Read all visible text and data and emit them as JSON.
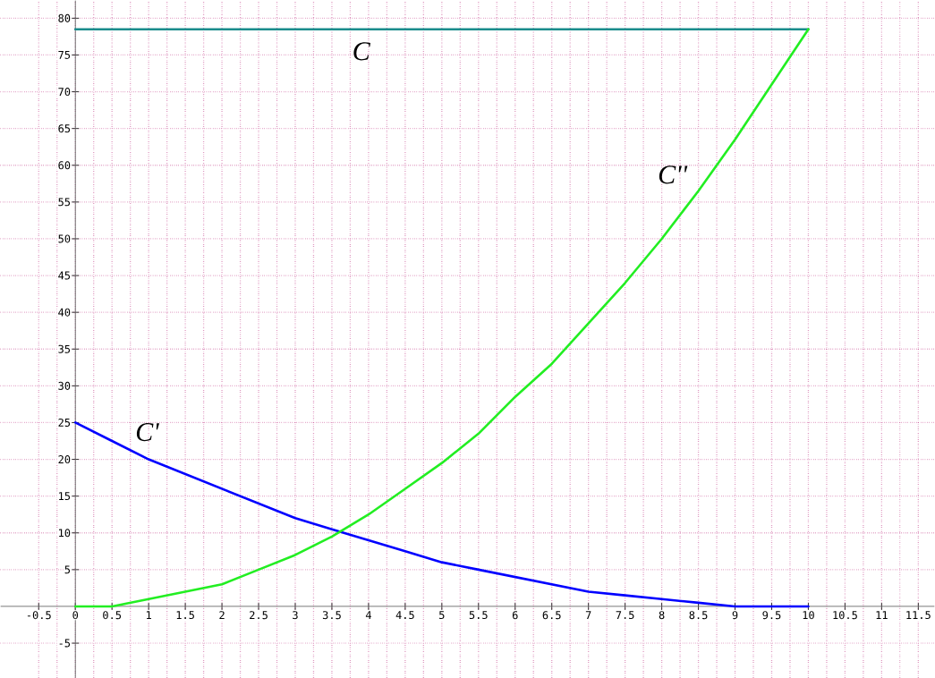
{
  "chart_data": {
    "type": "line",
    "xlim": [
      -1.02,
      11.72
    ],
    "ylim": [
      -9.7,
      82.4
    ],
    "xticks": [
      -0.5,
      0,
      0.5,
      1,
      1.5,
      2,
      2.5,
      3,
      3.5,
      4,
      4.5,
      5,
      5.5,
      6,
      6.5,
      7,
      7.5,
      8,
      8.5,
      9,
      9.5,
      10,
      10.5,
      11,
      11.5
    ],
    "yticks": [
      -5,
      5,
      10,
      15,
      20,
      25,
      30,
      35,
      40,
      45,
      50,
      55,
      60,
      65,
      70,
      75,
      80
    ],
    "grid": true,
    "line_style": "solid",
    "marker": "none",
    "x": [
      0,
      0.5,
      1,
      1.5,
      2,
      2.5,
      3,
      3.5,
      4,
      4.5,
      5,
      5.5,
      6,
      6.5,
      7,
      7.5,
      8,
      8.5,
      9,
      9.5,
      10
    ],
    "series": [
      {
        "name": "C",
        "color": "#1a8c8c",
        "x": [
          0,
          10
        ],
        "values": [
          78.5,
          78.5
        ]
      },
      {
        "name": "C'",
        "color": "#0000ff",
        "values": [
          25,
          22.5,
          20,
          18,
          16,
          14,
          12,
          10.5,
          9,
          7.5,
          6,
          5,
          4,
          3,
          2,
          1.5,
          1,
          0.5,
          0,
          0,
          0
        ]
      },
      {
        "name": "C''",
        "color": "#22ee22",
        "values": [
          0,
          0,
          1,
          2,
          3,
          5,
          7,
          9.5,
          12.5,
          16,
          19.5,
          23.5,
          28.5,
          33,
          38.5,
          44,
          50,
          56.5,
          63.5,
          71,
          78.5
        ]
      }
    ]
  }
}
